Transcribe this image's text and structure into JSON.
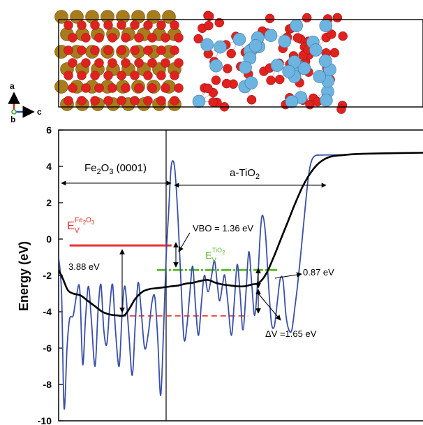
{
  "colors": {
    "blue": "#3a4fa8",
    "black": "#000000",
    "red": "#e8322b",
    "green": "#5cb82e",
    "fe_atom": "#a87c1c",
    "o_atom": "#e0221f",
    "ti_atom": "#6db4e0",
    "axis_a": "#d62728",
    "axis_c": "#1f4fbf",
    "axis_b": "#3aa53a"
  },
  "structure": {
    "axes": {
      "a": "a",
      "b": "b",
      "c": "c"
    }
  },
  "chart_data": {
    "type": "line",
    "ylabel": "Energy (eV)",
    "ylim": [
      -10,
      6
    ],
    "yticks": [
      "6",
      "4",
      "2",
      "0",
      "-2",
      "-4",
      "-6",
      "-8",
      "-10"
    ],
    "xlim": [
      0,
      100
    ],
    "interface_x": 29.5,
    "regions": [
      {
        "label": "Fe2O3 (0001)",
        "x_range": [
          0,
          29.5
        ]
      },
      {
        "label": "a-TiO2",
        "x_range": [
          29.5,
          71.5
        ]
      }
    ],
    "levels": {
      "ev_fe2o3": {
        "value": -0.35,
        "label": "E_V^Fe2O3",
        "color": "red",
        "x_range": [
          3,
          31
        ]
      },
      "ev_tio2": {
        "value": -1.7,
        "label": "E_V^TiO2",
        "color": "green",
        "x_range": [
          27,
          60
        ]
      },
      "fe_avg_dashed": {
        "value": -4.23,
        "color": "red",
        "x_range": [
          17,
          52
        ]
      }
    },
    "annotations": [
      {
        "text": "VBO = 1.36 eV"
      },
      {
        "text": "3.88 eV"
      },
      {
        "text": "0.87 eV"
      },
      {
        "text": "ΔV =1.65 eV"
      }
    ],
    "series": [
      {
        "color": "blue",
        "points": [
          [
            0,
            -1.0
          ],
          [
            0.8,
            -3.0
          ],
          [
            1.5,
            -9.3
          ],
          [
            2.3,
            -6.0
          ],
          [
            3.0,
            -4.4
          ],
          [
            4.0,
            -4.2
          ],
          [
            5.0,
            -3.0
          ],
          [
            5.8,
            -2.8
          ],
          [
            6.6,
            -6.9
          ],
          [
            7.4,
            -4.3
          ],
          [
            8.2,
            -2.6
          ],
          [
            9.0,
            -4.5
          ],
          [
            10.0,
            -7.0
          ],
          [
            10.8,
            -4.0
          ],
          [
            11.6,
            -2.5
          ],
          [
            12.4,
            -5.0
          ],
          [
            13.2,
            -5.8
          ],
          [
            14.0,
            -3.8
          ],
          [
            14.8,
            -2.5
          ],
          [
            15.6,
            -5.0
          ],
          [
            16.6,
            -7.0
          ],
          [
            17.4,
            -4.2
          ],
          [
            18.2,
            -2.6
          ],
          [
            19.2,
            -5.0
          ],
          [
            20.2,
            -7.5
          ],
          [
            21.0,
            -4.8
          ],
          [
            21.8,
            -2.4
          ],
          [
            22.6,
            -3.8
          ],
          [
            23.6,
            -6.0
          ],
          [
            24.6,
            -5.2
          ],
          [
            25.6,
            -3.5
          ],
          [
            26.4,
            -3.2
          ],
          [
            27.2,
            -5.5
          ],
          [
            28.0,
            -8.6
          ],
          [
            28.8,
            -5.0
          ],
          [
            29.5,
            -1.0
          ],
          [
            30.2,
            1.5
          ],
          [
            30.8,
            3.8
          ],
          [
            31.4,
            4.3
          ],
          [
            32.0,
            3.6
          ],
          [
            32.8,
            1.0
          ],
          [
            33.6,
            -2.5
          ],
          [
            34.4,
            -5.5
          ],
          [
            35.2,
            -4.8
          ],
          [
            36.0,
            -3.0
          ],
          [
            36.8,
            -1.5
          ],
          [
            37.6,
            -3.8
          ],
          [
            38.4,
            -5.3
          ],
          [
            39.2,
            -3.5
          ],
          [
            40.0,
            -2.0
          ],
          [
            41.0,
            -2.9
          ],
          [
            42.0,
            -2.0
          ],
          [
            42.8,
            -1.2
          ],
          [
            43.6,
            -2.6
          ],
          [
            44.2,
            -3.4
          ],
          [
            45.0,
            -2.5
          ],
          [
            45.6,
            -2.0
          ],
          [
            46.4,
            -3.4
          ],
          [
            47.4,
            -5.3
          ],
          [
            48.2,
            -3.5
          ],
          [
            49.0,
            -1.4
          ],
          [
            49.8,
            -3.0
          ],
          [
            50.6,
            -5.0
          ],
          [
            51.4,
            -3.0
          ],
          [
            52.2,
            -0.7
          ],
          [
            53.0,
            -2.5
          ],
          [
            53.8,
            -4.2
          ],
          [
            54.6,
            -2.4
          ],
          [
            55.4,
            0.5
          ],
          [
            56.0,
            1.3
          ],
          [
            56.8,
            0.2
          ],
          [
            57.6,
            -2.5
          ],
          [
            58.4,
            -4.6
          ],
          [
            59.2,
            -4.8
          ],
          [
            60.0,
            -3.5
          ],
          [
            60.8,
            -2.2
          ],
          [
            61.6,
            -2.3
          ],
          [
            62.4,
            -4.2
          ],
          [
            63.2,
            -5.0
          ],
          [
            64.0,
            -5.0
          ],
          [
            64.8,
            -3.8
          ],
          [
            65.6,
            -2.5
          ],
          [
            66.6,
            -0.5
          ],
          [
            67.6,
            1.6
          ],
          [
            68.6,
            3.5
          ],
          [
            69.4,
            4.3
          ],
          [
            70.4,
            4.58
          ],
          [
            72.0,
            4.62
          ],
          [
            78.0,
            4.64
          ],
          [
            85.0,
            4.7
          ],
          [
            100.0,
            4.75
          ]
        ]
      },
      {
        "color": "black",
        "points": [
          [
            0,
            -1.7
          ],
          [
            1.2,
            -2.2
          ],
          [
            2.5,
            -2.8
          ],
          [
            4.0,
            -3.0
          ],
          [
            6.0,
            -3.1
          ],
          [
            8.0,
            -3.4
          ],
          [
            10.0,
            -3.7
          ],
          [
            12.0,
            -4.0
          ],
          [
            14.0,
            -4.15
          ],
          [
            16.0,
            -4.2
          ],
          [
            18.0,
            -4.2
          ],
          [
            19.5,
            -3.8
          ],
          [
            21.0,
            -3.3
          ],
          [
            23.0,
            -2.9
          ],
          [
            25.0,
            -2.75
          ],
          [
            27.0,
            -2.7
          ],
          [
            29.0,
            -2.65
          ],
          [
            31.0,
            -2.6
          ],
          [
            33.0,
            -2.55
          ],
          [
            35.0,
            -2.45
          ],
          [
            37.0,
            -2.4
          ],
          [
            39.0,
            -2.3
          ],
          [
            41.0,
            -2.25
          ],
          [
            43.0,
            -2.4
          ],
          [
            45.0,
            -2.5
          ],
          [
            47.0,
            -2.55
          ],
          [
            49.0,
            -2.6
          ],
          [
            51.0,
            -2.6
          ],
          [
            53.0,
            -2.5
          ],
          [
            55.0,
            -2.4
          ],
          [
            57.0,
            -1.9
          ],
          [
            59.0,
            -1.0
          ],
          [
            61.0,
            0.0
          ],
          [
            63.0,
            1.0
          ],
          [
            65.0,
            2.0
          ],
          [
            67.0,
            2.9
          ],
          [
            69.0,
            3.6
          ],
          [
            71.0,
            4.1
          ],
          [
            73.0,
            4.4
          ],
          [
            75.0,
            4.55
          ],
          [
            78.0,
            4.62
          ],
          [
            82.0,
            4.68
          ],
          [
            90.0,
            4.72
          ],
          [
            100.0,
            4.75
          ]
        ]
      }
    ]
  }
}
